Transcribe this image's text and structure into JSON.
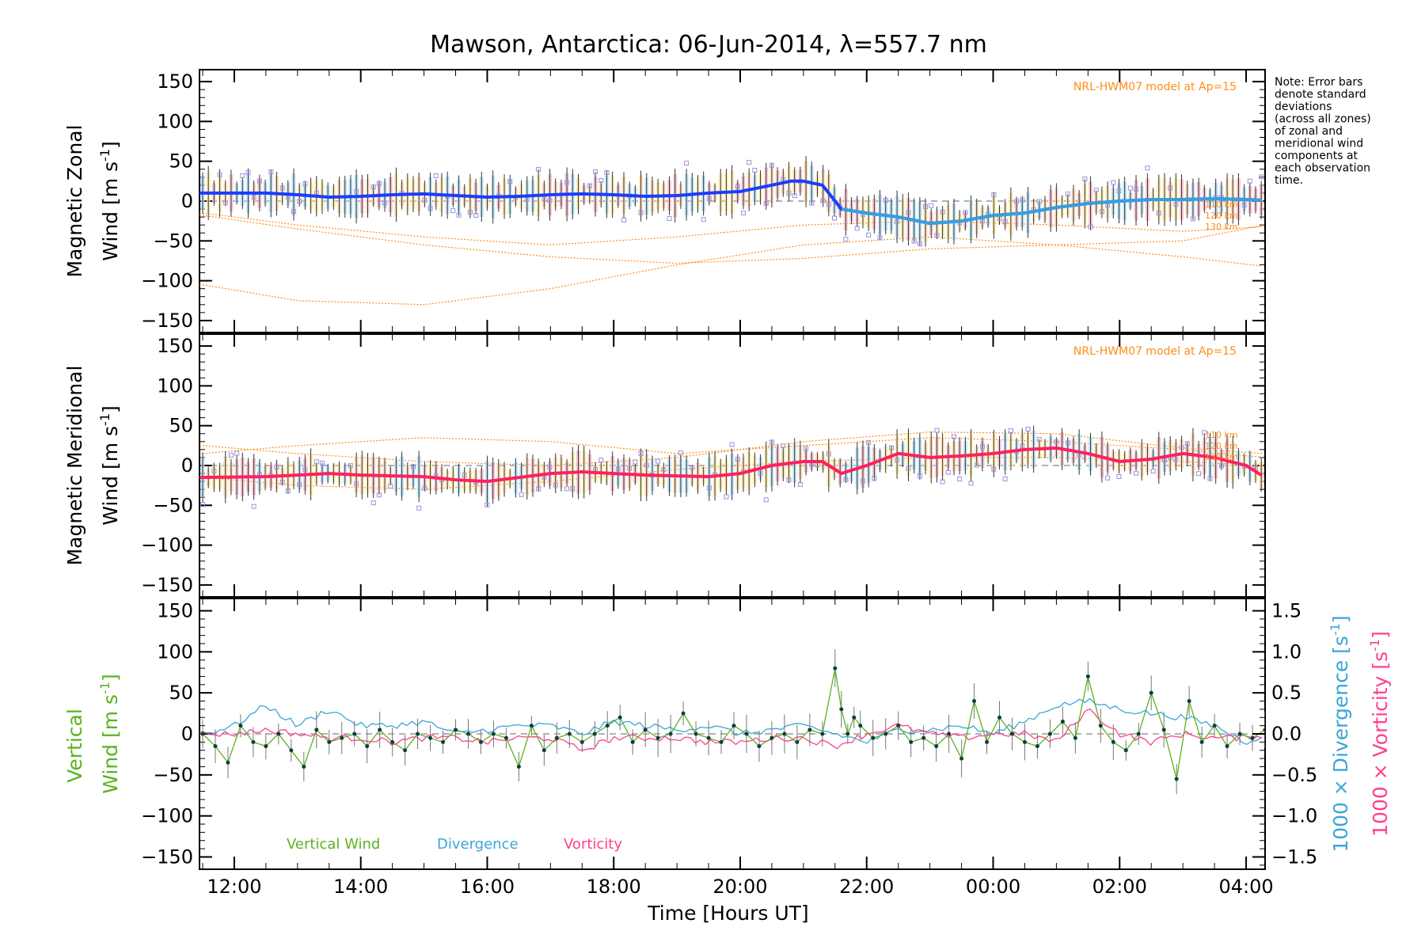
{
  "chart_data": {
    "title": "Mawson, Antarctica: 06-Jun-2014, λ=557.7 nm",
    "xlabel": "Time [Hours UT]",
    "x_tick_labels": [
      "12:00",
      "14:00",
      "16:00",
      "18:00",
      "20:00",
      "22:00",
      "00:00",
      "02:00",
      "04:00"
    ],
    "x_range_hours_from_12ut": [
      -0.55,
      16.3
    ],
    "note_lines": [
      "Note: Error bars",
      "denote standard",
      "deviations",
      "(across all zones)",
      "of zonal and",
      "meridional wind",
      "components at",
      "each observation",
      "time."
    ],
    "colors": {
      "zonal_mean": "#1a3dff",
      "zonal_mean_light": "#35a0e0",
      "meridional_mean": "#ff2060",
      "model": "#ff8c1a",
      "vertical_wind": "#5ab31e",
      "divergence": "#3aa6d9",
      "vorticity": "#ff3f8e",
      "zone_points": "#9b8fe0"
    },
    "panels": [
      {
        "type": "line",
        "ylabel_line1": "Magnetic Zonal",
        "ylabel_line2_prefix": "Wind [m s",
        "ylabel_sup": "-1",
        "ylabel_suffix": "]",
        "ylim": [
          -165,
          165
        ],
        "y_tick_labels": [
          "150",
          "100",
          "50",
          "0",
          "−50",
          "−100",
          "−150"
        ],
        "y_tick_values": [
          150,
          100,
          50,
          0,
          -50,
          -100,
          -150
        ],
        "model_label": "NRL-HWM07 model at Ap=15",
        "altitude_labels": [
          "110 km",
          "120 km",
          "130 km"
        ],
        "series": [
          {
            "kind": "mean",
            "x": [
              -0.5,
              0.5,
              1.0,
              1.5,
              2.0,
              2.5,
              3.0,
              3.5,
              4.0,
              4.5,
              5.0,
              5.5,
              6.0,
              6.5,
              7.0,
              7.5,
              8.0,
              8.5,
              8.8,
              9.0,
              9.3,
              9.6,
              10.0,
              10.5,
              11.0,
              11.5,
              12.0,
              12.5,
              13.0,
              13.5,
              14.0,
              14.5,
              15.0,
              15.5,
              16.0,
              16.3
            ],
            "y": [
              10,
              10,
              8,
              5,
              6,
              8,
              9,
              7,
              5,
              6,
              8,
              9,
              8,
              6,
              7,
              10,
              12,
              20,
              25,
              25,
              20,
              -10,
              -15,
              -20,
              -28,
              -25,
              -18,
              -15,
              -8,
              -3,
              0,
              2,
              2,
              3,
              2,
              1
            ]
          },
          {
            "kind": "model",
            "altitude": "110 km",
            "x": [
              -0.5,
              1,
              3,
              5,
              7,
              9,
              11,
              13,
              15,
              16.3
            ],
            "y": [
              -18,
              -35,
              -55,
              -70,
              -78,
              -72,
              -60,
              -55,
              -50,
              -30
            ]
          },
          {
            "kind": "model",
            "altitude": "120 km",
            "x": [
              -0.5,
              1,
              3,
              5,
              7,
              9,
              11,
              13,
              15,
              16.3
            ],
            "y": [
              -15,
              -30,
              -45,
              -55,
              -45,
              -30,
              -25,
              -30,
              -38,
              -32
            ]
          },
          {
            "kind": "model",
            "altitude": "130 km",
            "x": [
              -0.5,
              1,
              3,
              5,
              7,
              9,
              11,
              13,
              15,
              16.3
            ],
            "y": [
              -105,
              -125,
              -130,
              -110,
              -80,
              -55,
              -45,
              -55,
              -70,
              -82
            ]
          }
        ]
      },
      {
        "type": "line",
        "ylabel_line1": "Magnetic Meridional",
        "ylabel_line2_prefix": "Wind [m s",
        "ylabel_sup": "-1",
        "ylabel_suffix": "]",
        "ylim": [
          -165,
          165
        ],
        "y_tick_labels": [
          "150",
          "100",
          "50",
          "0",
          "−50",
          "−100",
          "−150"
        ],
        "y_tick_values": [
          150,
          100,
          50,
          0,
          -50,
          -100,
          -150
        ],
        "model_label": "NRL-HWM07 model at Ap=15",
        "altitude_labels": [
          "110 km",
          "120 km",
          "130 km"
        ],
        "series": [
          {
            "kind": "mean",
            "x": [
              -0.5,
              0.5,
              1.0,
              1.5,
              2.0,
              2.5,
              3.0,
              3.5,
              4.0,
              4.5,
              5.0,
              5.5,
              6.0,
              6.5,
              7.0,
              7.5,
              8.0,
              8.5,
              9.0,
              9.3,
              9.6,
              10.0,
              10.5,
              11.0,
              11.5,
              12.0,
              12.5,
              13.0,
              13.5,
              14.0,
              14.5,
              15.0,
              15.5,
              16.0,
              16.3
            ],
            "y": [
              -15,
              -14,
              -12,
              -10,
              -12,
              -13,
              -14,
              -18,
              -20,
              -15,
              -10,
              -8,
              -10,
              -12,
              -13,
              -14,
              -10,
              0,
              5,
              5,
              -10,
              0,
              15,
              10,
              12,
              15,
              20,
              22,
              15,
              5,
              8,
              15,
              10,
              0,
              -15
            ]
          },
          {
            "kind": "model",
            "altitude": "110 km",
            "x": [
              -0.5,
              1,
              3,
              5,
              7,
              9,
              11,
              13,
              15,
              16.3
            ],
            "y": [
              25,
              15,
              5,
              0,
              10,
              30,
              42,
              40,
              22,
              15
            ]
          },
          {
            "kind": "model",
            "altitude": "120 km",
            "x": [
              -0.5,
              1,
              3,
              5,
              7,
              9,
              11,
              13,
              15,
              16.3
            ],
            "y": [
              15,
              25,
              35,
              30,
              15,
              25,
              35,
              30,
              20,
              10
            ]
          },
          {
            "kind": "model",
            "altitude": "130 km",
            "x": [
              -0.5,
              1,
              3,
              5,
              7,
              9,
              11,
              13,
              15,
              16.3
            ],
            "y": [
              -15,
              -25,
              -30,
              -20,
              -5,
              5,
              10,
              10,
              5,
              0
            ]
          }
        ]
      },
      {
        "type": "line",
        "ylabel_line1": "Vertical",
        "ylabel_line2_prefix": "Wind [m s",
        "ylabel_sup": "-1",
        "ylabel_suffix": "]",
        "ylim": [
          -165,
          165
        ],
        "y_tick_labels": [
          "150",
          "100",
          "50",
          "0",
          "−50",
          "−100",
          "−150"
        ],
        "y_tick_values": [
          150,
          100,
          50,
          0,
          -50,
          -100,
          -150
        ],
        "right_axis": {
          "ylim": [
            -1.65,
            1.65
          ],
          "y_tick_labels": [
            "1.5",
            "1.0",
            "0.5",
            "0.0",
            "−0.5",
            "−1.0",
            "−1.5"
          ],
          "y_tick_values": [
            1.5,
            1.0,
            0.5,
            0.0,
            -0.5,
            -1.0,
            -1.5
          ],
          "label_divergence_prefix": "1000 × Divergence [s",
          "label_vorticity_prefix": "1000 × Vorticity [s",
          "label_sup": "-1",
          "label_suffix": "]"
        },
        "legend": [
          "Vertical Wind",
          "Divergence",
          "Vorticity"
        ],
        "series": [
          {
            "name": "Vertical Wind",
            "x": [
              -0.5,
              -0.3,
              -0.1,
              0.1,
              0.3,
              0.5,
              0.7,
              0.9,
              1.1,
              1.3,
              1.5,
              1.7,
              1.9,
              2.1,
              2.3,
              2.5,
              2.7,
              2.9,
              3.1,
              3.3,
              3.5,
              3.7,
              3.9,
              4.1,
              4.3,
              4.5,
              4.7,
              4.9,
              5.1,
              5.3,
              5.5,
              5.7,
              5.9,
              6.1,
              6.3,
              6.5,
              6.7,
              6.9,
              7.1,
              7.3,
              7.5,
              7.7,
              7.9,
              8.1,
              8.3,
              8.5,
              8.7,
              8.9,
              9.1,
              9.3,
              9.5,
              9.6,
              9.7,
              9.8,
              9.9,
              10.1,
              10.3,
              10.5,
              10.7,
              10.9,
              11.1,
              11.3,
              11.5,
              11.7,
              11.9,
              12.1,
              12.3,
              12.5,
              12.7,
              12.9,
              13.1,
              13.3,
              13.5,
              13.7,
              13.9,
              14.1,
              14.3,
              14.5,
              14.7,
              14.9,
              15.1,
              15.3,
              15.5,
              15.7,
              15.9,
              16.1,
              16.3
            ],
            "y": [
              0,
              -15,
              -35,
              10,
              -10,
              -15,
              0,
              -20,
              -40,
              5,
              -10,
              -5,
              0,
              -15,
              5,
              -10,
              -20,
              0,
              -5,
              -10,
              5,
              0,
              -10,
              0,
              -5,
              -40,
              10,
              -20,
              -5,
              0,
              -10,
              0,
              10,
              20,
              -10,
              5,
              -5,
              0,
              25,
              0,
              -5,
              -10,
              10,
              0,
              -15,
              -5,
              0,
              -10,
              5,
              0,
              80,
              30,
              0,
              20,
              10,
              -5,
              0,
              10,
              -10,
              -5,
              -15,
              0,
              -30,
              40,
              -10,
              20,
              0,
              -10,
              -15,
              0,
              15,
              -5,
              70,
              10,
              -10,
              -20,
              0,
              50,
              5,
              -55,
              40,
              -10,
              10,
              -15,
              0,
              -5,
              5
            ]
          },
          {
            "name": "Divergence",
            "x": [
              -0.5,
              0,
              0.5,
              1,
              1.5,
              2,
              2.5,
              3,
              3.5,
              4,
              4.5,
              5,
              5.5,
              6,
              6.5,
              7,
              7.5,
              8,
              8.5,
              9,
              9.5,
              10,
              10.5,
              11,
              11.5,
              12,
              12.5,
              13,
              13.5,
              14,
              14.5,
              15,
              15.5,
              16,
              16.3
            ],
            "y": [
              0.0,
              0.1,
              0.35,
              0.1,
              0.3,
              0.1,
              0.1,
              0.15,
              0.0,
              0.05,
              0.1,
              0.1,
              0.0,
              0.15,
              0.1,
              0.05,
              0.1,
              0.0,
              0.05,
              0.1,
              0.0,
              -0.1,
              0.05,
              0.05,
              0.1,
              0.0,
              0.15,
              0.35,
              0.4,
              0.3,
              0.25,
              0.2,
              0.1,
              -0.1,
              0.0
            ]
          },
          {
            "name": "Vorticity",
            "x": [
              -0.5,
              0,
              0.5,
              1,
              1.5,
              2,
              2.5,
              3,
              3.5,
              4,
              4.5,
              5,
              5.5,
              6,
              6.5,
              7,
              7.5,
              8,
              8.5,
              9,
              9.5,
              10,
              10.5,
              11,
              11.5,
              12,
              12.5,
              13,
              13.5,
              14,
              14.5,
              15,
              15.5,
              16,
              16.3
            ],
            "y": [
              0.0,
              0.0,
              0.05,
              0.0,
              -0.05,
              -0.05,
              -0.1,
              -0.05,
              -0.05,
              -0.1,
              -0.05,
              -0.05,
              -0.2,
              -0.05,
              -0.05,
              -0.05,
              -0.1,
              -0.1,
              -0.05,
              -0.05,
              -0.15,
              0.0,
              0.1,
              0.0,
              -0.05,
              0.0,
              0.0,
              -0.1,
              0.3,
              0.0,
              -0.1,
              0.0,
              -0.05,
              -0.05,
              0.0
            ]
          }
        ]
      }
    ]
  }
}
